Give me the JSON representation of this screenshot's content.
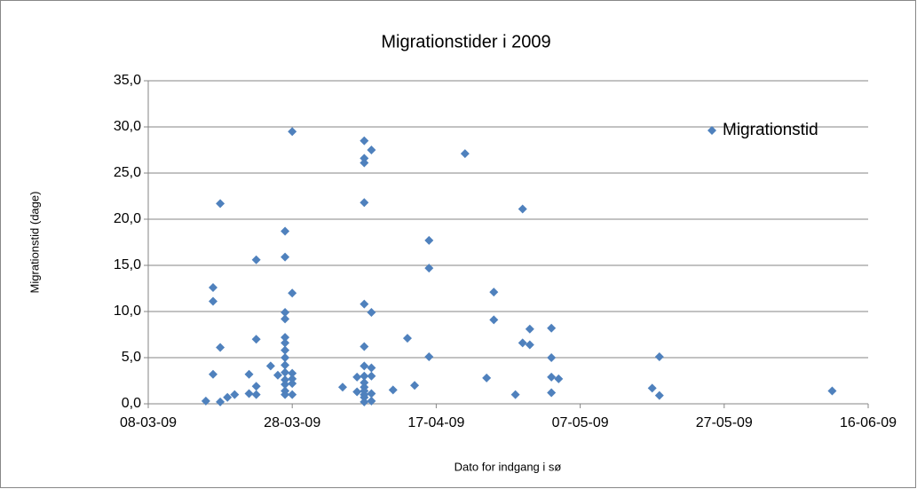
{
  "chart_data": {
    "type": "scatter",
    "title": "Migrationstider i 2009",
    "xlabel": "Dato for indgang i sø",
    "ylabel": "Migrationstid (dage)",
    "series": [
      {
        "name": "Migrationstid",
        "color": "#4f81bd",
        "x": [
          "2009-03-16",
          "2009-03-17",
          "2009-03-17",
          "2009-03-17",
          "2009-03-18",
          "2009-03-18",
          "2009-03-18",
          "2009-03-19",
          "2009-03-20",
          "2009-03-22",
          "2009-03-22",
          "2009-03-23",
          "2009-03-23",
          "2009-03-23",
          "2009-03-23",
          "2009-03-25",
          "2009-03-26",
          "2009-03-27",
          "2009-03-27",
          "2009-03-27",
          "2009-03-27",
          "2009-03-27",
          "2009-03-27",
          "2009-03-27",
          "2009-03-27",
          "2009-03-27",
          "2009-03-27",
          "2009-03-27",
          "2009-03-27",
          "2009-03-27",
          "2009-03-27",
          "2009-03-28",
          "2009-03-28",
          "2009-03-28",
          "2009-03-28",
          "2009-03-28",
          "2009-03-28",
          "2009-04-04",
          "2009-04-06",
          "2009-04-06",
          "2009-04-07",
          "2009-04-07",
          "2009-04-07",
          "2009-04-07",
          "2009-04-07",
          "2009-04-07",
          "2009-04-07",
          "2009-04-07",
          "2009-04-07",
          "2009-04-07",
          "2009-04-07",
          "2009-04-07",
          "2009-04-07",
          "2009-04-07",
          "2009-04-08",
          "2009-04-08",
          "2009-04-08",
          "2009-04-08",
          "2009-04-08",
          "2009-04-08",
          "2009-04-11",
          "2009-04-13",
          "2009-04-14",
          "2009-04-16",
          "2009-04-16",
          "2009-04-16",
          "2009-04-21",
          "2009-04-24",
          "2009-04-25",
          "2009-04-25",
          "2009-04-28",
          "2009-04-29",
          "2009-04-29",
          "2009-04-30",
          "2009-04-30",
          "2009-05-03",
          "2009-05-03",
          "2009-05-03",
          "2009-05-03",
          "2009-05-04",
          "2009-05-17",
          "2009-05-18",
          "2009-05-18",
          "2009-06-11"
        ],
        "values": [
          0.3,
          12.6,
          11.1,
          3.2,
          21.7,
          6.1,
          0.2,
          0.7,
          1.0,
          3.2,
          1.1,
          15.6,
          7.0,
          1.9,
          1.0,
          4.1,
          3.1,
          18.7,
          15.9,
          9.9,
          9.2,
          7.2,
          6.6,
          5.8,
          5.0,
          4.2,
          3.4,
          2.6,
          2.1,
          1.4,
          1.0,
          29.5,
          12.0,
          3.3,
          2.7,
          2.2,
          1.0,
          1.8,
          2.9,
          1.3,
          28.5,
          26.6,
          26.1,
          21.8,
          10.8,
          6.2,
          4.1,
          3.0,
          2.3,
          1.8,
          1.4,
          1.0,
          0.7,
          0.2,
          27.5,
          9.9,
          3.9,
          3.0,
          1.1,
          0.3,
          1.5,
          7.1,
          2.0,
          17.7,
          14.7,
          5.1,
          27.1,
          2.8,
          12.1,
          9.1,
          1.0,
          21.1,
          6.6,
          8.1,
          6.4,
          8.2,
          5.0,
          2.9,
          1.2,
          2.7,
          1.7,
          5.1,
          0.9,
          1.4
        ]
      }
    ],
    "xlim": [
      "2009-03-08",
      "2009-06-16"
    ],
    "xticks": [
      {
        "value": "2009-03-08",
        "label": "08-03-09"
      },
      {
        "value": "2009-03-28",
        "label": "28-03-09"
      },
      {
        "value": "2009-04-17",
        "label": "17-04-09"
      },
      {
        "value": "2009-05-07",
        "label": "07-05-09"
      },
      {
        "value": "2009-05-27",
        "label": "27-05-09"
      },
      {
        "value": "2009-06-16",
        "label": "16-06-09"
      }
    ],
    "ylim": [
      0,
      35
    ],
    "yticks": [
      {
        "value": 0,
        "label": "0,0"
      },
      {
        "value": 5,
        "label": "5,0"
      },
      {
        "value": 10,
        "label": "10,0"
      },
      {
        "value": 15,
        "label": "15,0"
      },
      {
        "value": 20,
        "label": "20,0"
      },
      {
        "value": 25,
        "label": "25,0"
      },
      {
        "value": 30,
        "label": "30,0"
      },
      {
        "value": 35,
        "label": "35,0"
      }
    ],
    "grid": true,
    "legend": "upper right"
  }
}
